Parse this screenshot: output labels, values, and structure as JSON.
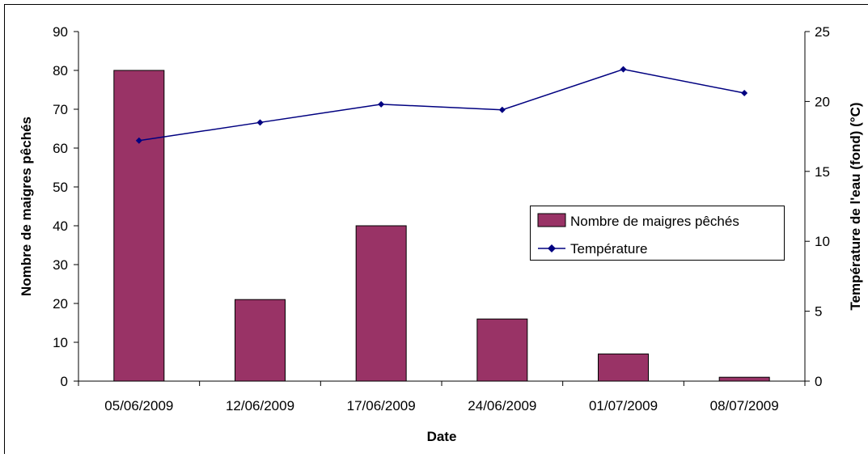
{
  "chart_data": {
    "type": "bar",
    "categories": [
      "05/06/2009",
      "12/06/2009",
      "17/06/2009",
      "24/06/2009",
      "01/07/2009",
      "08/07/2009"
    ],
    "series": [
      {
        "name": "Nombre de maigres pêchés",
        "type": "bar",
        "axis": "left",
        "color": "#993366",
        "values": [
          80,
          21,
          40,
          16,
          7,
          1
        ]
      },
      {
        "name": "Température",
        "type": "line",
        "axis": "right",
        "color": "#000080",
        "marker": "diamond",
        "values": [
          17.2,
          18.5,
          19.8,
          19.4,
          22.3,
          20.6
        ]
      }
    ],
    "xlabel": "Date",
    "ylabel": "Nombre de maigres pêchés",
    "y2label": "Température de l'eau (fond) (°C)",
    "ylim": [
      0,
      90
    ],
    "y_ticks": [
      0,
      10,
      20,
      30,
      40,
      50,
      60,
      70,
      80,
      90
    ],
    "y2lim": [
      0,
      25
    ],
    "y2_ticks": [
      0,
      5,
      10,
      15,
      20,
      25
    ],
    "grid": false,
    "legend_position": "right-middle"
  }
}
